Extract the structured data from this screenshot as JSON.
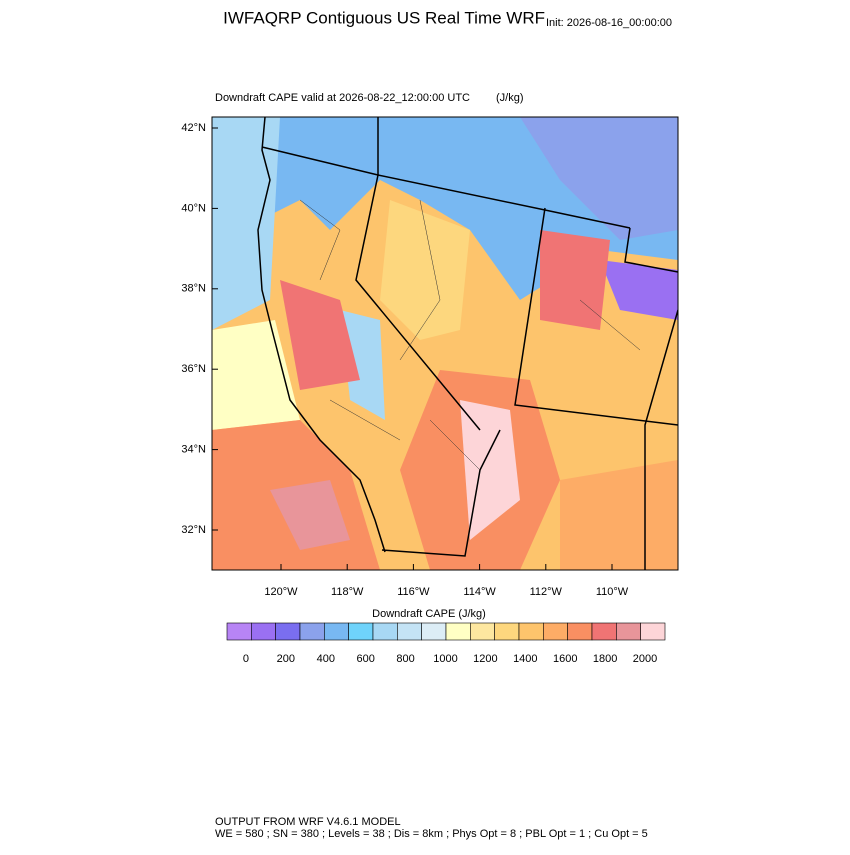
{
  "header": {
    "title": "IWFAQRP Contiguous US Real Time WRF",
    "init": "Init: 2026-08-16_00:00:00"
  },
  "map": {
    "subtitle": "Downdraft CAPE valid at 2026-08-22_12:00:00 UTC",
    "units": "(J/kg)",
    "lat_ticks": [
      {
        "value": 42,
        "label": "42°N"
      },
      {
        "value": 40,
        "label": "40°N"
      },
      {
        "value": 38,
        "label": "38°N"
      },
      {
        "value": 36,
        "label": "36°N"
      },
      {
        "value": 34,
        "label": "34°N"
      },
      {
        "value": 32,
        "label": "32°N"
      }
    ],
    "lon_ticks": [
      {
        "value": 120,
        "label": "120°W"
      },
      {
        "value": 118,
        "label": "118°W"
      },
      {
        "value": 116,
        "label": "116°W"
      },
      {
        "value": 114,
        "label": "114°W"
      },
      {
        "value": 112,
        "label": "112°W"
      },
      {
        "value": 110,
        "label": "110°W"
      }
    ]
  },
  "colorbar": {
    "title": "Downdraft CAPE  (J/kg)",
    "colors": [
      "#b784f5",
      "#9a70f2",
      "#7a6ef0",
      "#8ba2ec",
      "#78b8f2",
      "#6fd3fb",
      "#a8d8f4",
      "#c4e3f5",
      "#dcedf6",
      "#ffffc4",
      "#fde7a0",
      "#fdd77e",
      "#fdc46c",
      "#fdac66",
      "#f98f62",
      "#f07474",
      "#e8959a",
      "#fdd5d8"
    ],
    "lim": [
      -95,
      2100
    ],
    "ticks": [
      0,
      200,
      400,
      600,
      800,
      1000,
      1200,
      1400,
      1600,
      1800,
      2000
    ]
  },
  "footer": {
    "line1": "OUTPUT FROM WRF V4.6.1 MODEL",
    "line2": "WE = 580 ; SN = 380 ; Levels = 38 ; Dis = 8km ; Phys Opt = 8 ; PBL Opt = 1 ; Cu Opt = 5"
  }
}
